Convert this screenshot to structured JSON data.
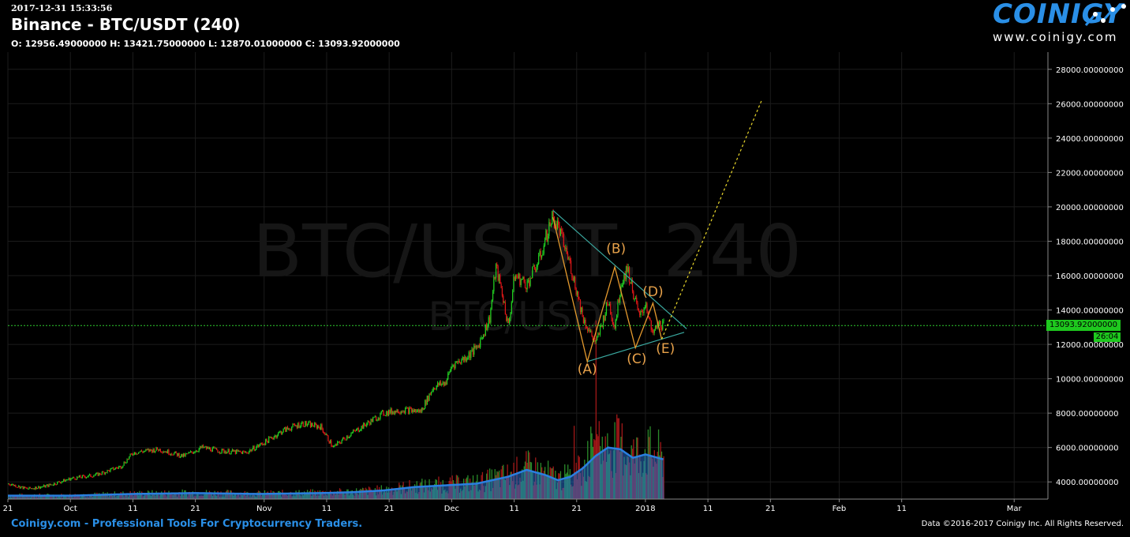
{
  "header": {
    "timestamp": "2017-12-31 15:33:56",
    "title": "Binance - BTC/USDT (240)",
    "ohlc": "O: 12956.49000000 H: 13421.75000000 L: 12870.01000000 C: 13093.92000000"
  },
  "logo": {
    "word": "COINIGY",
    "url": "www.coinigy.com"
  },
  "watermark": {
    "line1": "BTC/USDT, 240",
    "line2": "BTC/USDT"
  },
  "footer": {
    "left": "Coinigy.com - Professional Tools For Cryptocurrency Traders.",
    "right": "Data ©2016-2017 Coinigy Inc. All Rights Reserved."
  },
  "price_badge": {
    "price": "13093.92000000",
    "timer": "26:04"
  },
  "chart_data": {
    "type": "candlestick",
    "y_axis": {
      "ticks": [
        {
          "value": 4000,
          "label": "4000.00000000"
        },
        {
          "value": 6000,
          "label": "6000.00000000"
        },
        {
          "value": 8000,
          "label": "8000.00000000"
        },
        {
          "value": 10000,
          "label": "10000.00000000"
        },
        {
          "value": 12000,
          "label": "12000.00000000"
        },
        {
          "value": 14000,
          "label": "14000.00000000"
        },
        {
          "value": 16000,
          "label": "16000.00000000"
        },
        {
          "value": 18000,
          "label": "18000.00000000"
        },
        {
          "value": 20000,
          "label": "20000.00000000"
        },
        {
          "value": 22000,
          "label": "22000.00000000"
        },
        {
          "value": 24000,
          "label": "24000.00000000"
        },
        {
          "value": 26000,
          "label": "26000.00000000"
        },
        {
          "value": 28000,
          "label": "28000.00000000"
        }
      ],
      "ylim": [
        3000,
        29000
      ]
    },
    "x_axis": {
      "ticks": [
        {
          "day": 0,
          "label": "21"
        },
        {
          "day": 10,
          "label": "Oct"
        },
        {
          "day": 20,
          "label": "11"
        },
        {
          "day": 30,
          "label": "21"
        },
        {
          "day": 41,
          "label": "Nov"
        },
        {
          "day": 51,
          "label": "11"
        },
        {
          "day": 61,
          "label": "21"
        },
        {
          "day": 71,
          "label": "Dec"
        },
        {
          "day": 81,
          "label": "11"
        },
        {
          "day": 91,
          "label": "21"
        },
        {
          "day": 102,
          "label": "2018"
        },
        {
          "day": 112,
          "label": "11"
        },
        {
          "day": 122,
          "label": "21"
        },
        {
          "day": 133,
          "label": "Feb"
        },
        {
          "day": 143,
          "label": "11"
        },
        {
          "day": 161,
          "label": "Mar"
        }
      ],
      "xlim": [
        0,
        166.4
      ]
    },
    "price_path": [
      [
        0,
        3900
      ],
      [
        3,
        3600
      ],
      [
        6,
        3750
      ],
      [
        10,
        4200
      ],
      [
        14,
        4400
      ],
      [
        18,
        4900
      ],
      [
        20,
        5700
      ],
      [
        24,
        5900
      ],
      [
        28,
        5500
      ],
      [
        31,
        6000
      ],
      [
        34,
        5800
      ],
      [
        38,
        5700
      ],
      [
        41,
        6300
      ],
      [
        44,
        7000
      ],
      [
        47,
        7400
      ],
      [
        50,
        7200
      ],
      [
        52,
        6000
      ],
      [
        54,
        6600
      ],
      [
        57,
        7300
      ],
      [
        60,
        8000
      ],
      [
        63,
        8200
      ],
      [
        66,
        8100
      ],
      [
        68,
        9500
      ],
      [
        70,
        9800
      ],
      [
        71,
        10800
      ],
      [
        73,
        11200
      ],
      [
        75,
        11800
      ],
      [
        77,
        13500
      ],
      [
        78,
        16500
      ],
      [
        79,
        15000
      ],
      [
        80,
        13000
      ],
      [
        81,
        16000
      ],
      [
        83,
        15500
      ],
      [
        85,
        17000
      ],
      [
        87,
        19400
      ],
      [
        88,
        18800
      ],
      [
        90,
        16500
      ],
      [
        92,
        13500
      ],
      [
        94,
        12000
      ],
      [
        96,
        14500
      ],
      [
        97,
        13000
      ],
      [
        98,
        15500
      ],
      [
        99,
        16500
      ],
      [
        100,
        15000
      ],
      [
        101,
        13500
      ],
      [
        102,
        14500
      ],
      [
        103,
        12500
      ],
      [
        104,
        13200
      ],
      [
        105,
        13093
      ]
    ],
    "volume_path": [
      [
        0,
        200
      ],
      [
        10,
        200
      ],
      [
        20,
        300
      ],
      [
        30,
        350
      ],
      [
        40,
        300
      ],
      [
        50,
        350
      ],
      [
        55,
        400
      ],
      [
        60,
        500
      ],
      [
        65,
        700
      ],
      [
        70,
        800
      ],
      [
        75,
        900
      ],
      [
        80,
        1300
      ],
      [
        83,
        1700
      ],
      [
        86,
        1400
      ],
      [
        88,
        1100
      ],
      [
        90,
        1300
      ],
      [
        92,
        1800
      ],
      [
        94,
        2500
      ],
      [
        96,
        3000
      ],
      [
        98,
        2900
      ],
      [
        100,
        2400
      ],
      [
        102,
        2600
      ],
      [
        105,
        2300
      ]
    ],
    "volume_scale": {
      "zero_price": 3000,
      "per_unit": 0.1
    },
    "last_price": 13093.92,
    "annotations": [
      {
        "label": "(A)",
        "day": 92.7,
        "price": 10300
      },
      {
        "label": "(B)",
        "day": 97.3,
        "price": 17300
      },
      {
        "label": "(C)",
        "day": 100.6,
        "price": 10900
      },
      {
        "label": "(D)",
        "day": 103.2,
        "price": 14800
      },
      {
        "label": "(E)",
        "day": 105.2,
        "price": 11500
      }
    ],
    "wave_path": [
      [
        87.2,
        19400
      ],
      [
        92.7,
        11000
      ],
      [
        97.1,
        16500
      ],
      [
        100.4,
        11800
      ],
      [
        103.2,
        14400
      ],
      [
        104.6,
        12300
      ]
    ],
    "triangle_upper": [
      [
        87.2,
        19800
      ],
      [
        108.6,
        12900
      ]
    ],
    "triangle_lower": [
      [
        92.7,
        11000
      ],
      [
        108.2,
        12700
      ]
    ],
    "projection": [
      [
        104.6,
        12300
      ],
      [
        120.6,
        26200
      ]
    ]
  }
}
